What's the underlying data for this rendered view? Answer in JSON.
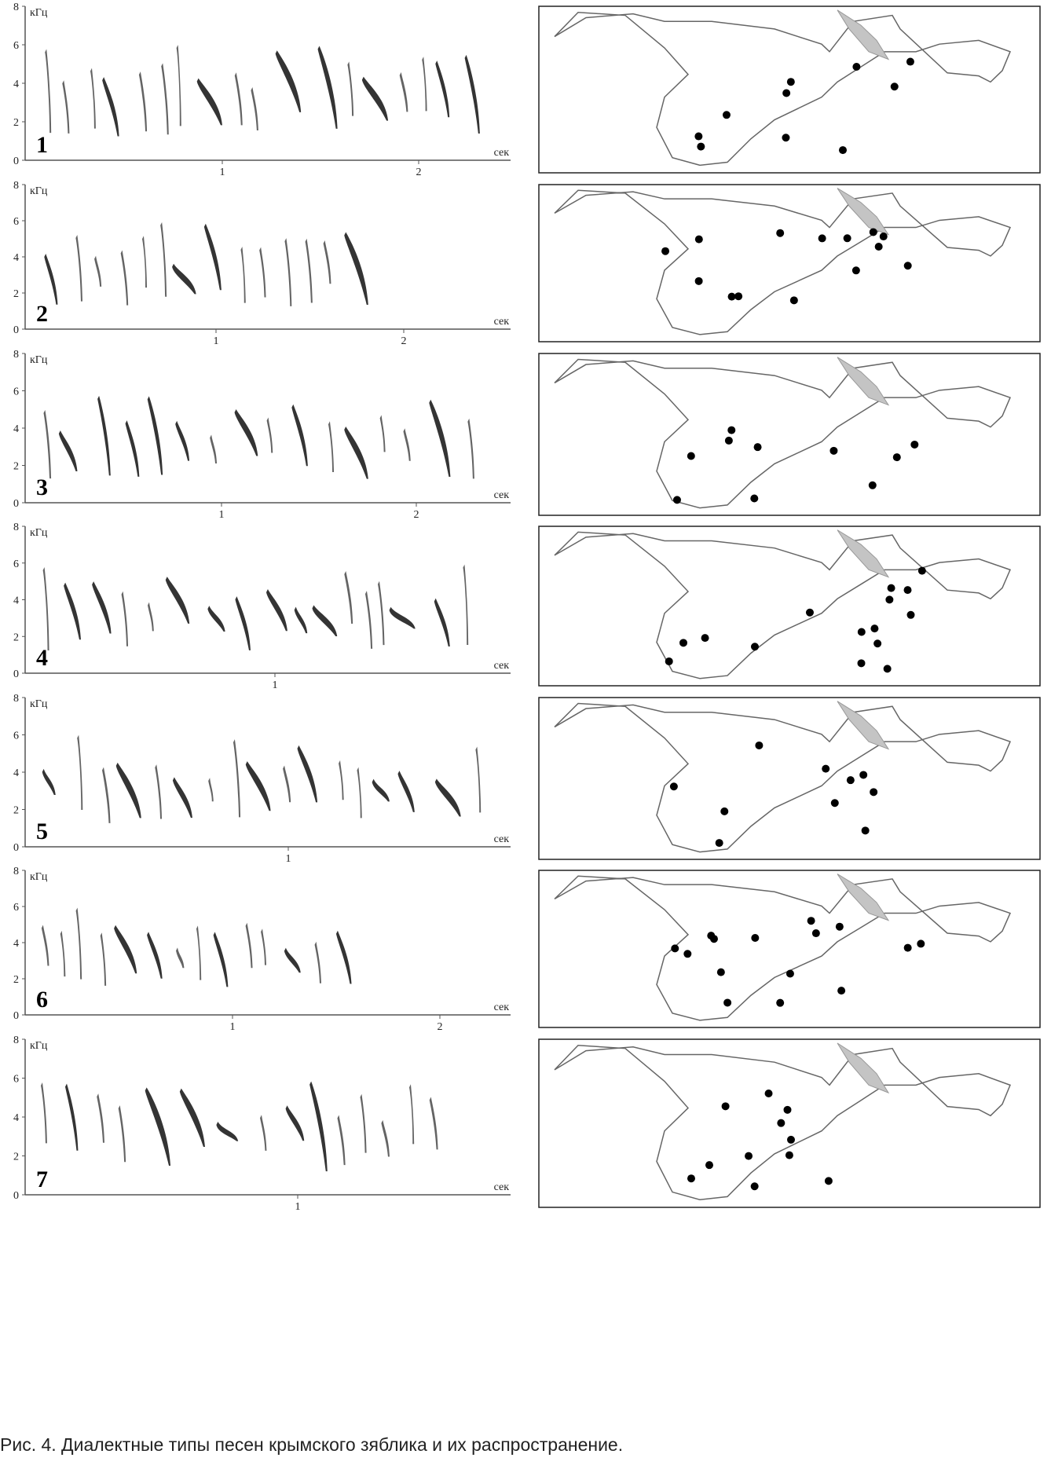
{
  "figure": {
    "caption": "Рис. 4. Диалектные типы песен крымского зяблика и их распространение.",
    "y_unit": "кГц",
    "x_unit": "сек",
    "panels": [
      {
        "label": "1",
        "x_ticks": [
          "1",
          "2"
        ]
      },
      {
        "label": "2",
        "x_ticks": [
          "1",
          "2"
        ]
      },
      {
        "label": "3",
        "x_ticks": [
          "1",
          "2"
        ]
      },
      {
        "label": "4",
        "x_ticks": [
          "1"
        ]
      },
      {
        "label": "5",
        "x_ticks": [
          "1"
        ]
      },
      {
        "label": "6",
        "x_ticks": [
          "1",
          "2"
        ]
      },
      {
        "label": "7",
        "x_ticks": [
          "1"
        ]
      }
    ],
    "y_ticks": [
      "0",
      "2",
      "4",
      "6",
      "8"
    ]
  },
  "colors": {
    "ink": "#111111",
    "map_outline": "#666666",
    "shaded_area": "#c4c4c4"
  }
}
